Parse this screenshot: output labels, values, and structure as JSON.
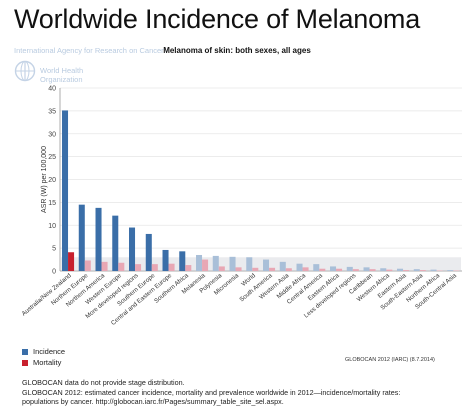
{
  "slide_title": "Worldwide Incidence of Melanoma",
  "iarc_text": "International Agency for Research on Cancer",
  "who_text": [
    "World Health",
    "Organization"
  ],
  "colors": {
    "incidence": "#3a6ea8",
    "incidence_light": "#a9bfd8",
    "mortality": "#c8202e",
    "mortality_light": "#e8a7b4",
    "highlight_band": "#c3c7ce"
  },
  "legend": {
    "incidence_label": "Incidence",
    "mortality_label": "Mortality"
  },
  "source_short": "GLOBOCAN 2012 (IARC) (8.7.2014)",
  "footnotes": [
    "GLOBOCAN data do not provide stage distribution.",
    "GLOBOCAN 2012: estimated cancer incidence, mortality and prevalence worldwide in 2012—incidence/mortality rates:",
    "populations by cancer. http://globocan.iarc.fr/Pages/summary_table_site_sel.aspx."
  ],
  "chart_data": {
    "type": "bar",
    "title": "Melanoma of skin: both sexes, all ages",
    "ylabel": "ASR (W) per 100,000",
    "xlabel": "",
    "ylim": [
      0,
      40
    ],
    "yticks": [
      0,
      5,
      10,
      15,
      20,
      25,
      30,
      35,
      40
    ],
    "grid": true,
    "categories": [
      "Australia/New Zealand",
      "Northern Europe",
      "Northern America",
      "Western Europe",
      "More developed regions",
      "Southern Europe",
      "Central and Eastern Europe",
      "Southern Africa",
      "Melanesia",
      "Polynesia",
      "Micronesia",
      "World",
      "South America",
      "Western Asia",
      "Middle Africa",
      "Central America",
      "Eastern Africa",
      "Less developed regions",
      "Caribbean",
      "Western Africa",
      "Eastern Asia",
      "South-Eastern Asia",
      "Northern Africa",
      "South-Central Asia"
    ],
    "series": [
      {
        "name": "Incidence",
        "values": [
          35.1,
          14.5,
          13.8,
          12.1,
          9.5,
          8.1,
          4.6,
          4.3,
          3.5,
          3.3,
          3.1,
          3.0,
          2.5,
          2.0,
          1.6,
          1.5,
          1.0,
          0.9,
          0.8,
          0.6,
          0.5,
          0.4,
          0.3,
          0.2
        ]
      },
      {
        "name": "Mortality",
        "values": [
          4.1,
          2.3,
          2.0,
          1.8,
          1.5,
          1.5,
          1.6,
          1.3,
          2.5,
          1.0,
          0.8,
          0.7,
          0.7,
          0.6,
          0.8,
          0.5,
          0.5,
          0.4,
          0.4,
          0.3,
          0.2,
          0.2,
          0.1,
          0.1
        ]
      }
    ],
    "highlighted_categories": [
      "Australia/New Zealand"
    ],
    "legend_position": "bottom-left"
  }
}
